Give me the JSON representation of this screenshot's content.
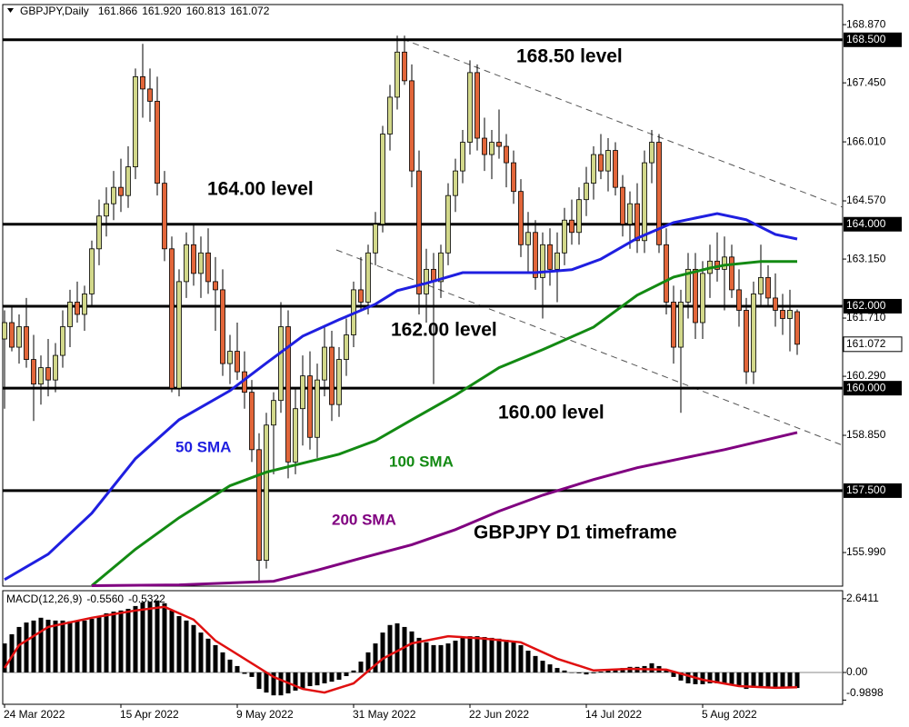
{
  "chart_data": [
    {
      "type": "candlestick",
      "title": "GBPJPY,Daily",
      "header_values": [
        "161.866",
        "161.920",
        "160.813",
        "161.072"
      ],
      "xlim": [
        -0.25,
        115.25
      ],
      "xticks": [
        {
          "value": 0,
          "label": "24 Mar 2022"
        },
        {
          "value": 16,
          "label": "15 Apr 2022"
        },
        {
          "value": 32,
          "label": "9 May 2022"
        },
        {
          "value": 48,
          "label": "31 May 2022"
        },
        {
          "value": 64,
          "label": "22 Jun 2022"
        },
        {
          "value": 80,
          "label": "14 Jul 2022"
        },
        {
          "value": 96,
          "label": "5 Aug 2022"
        }
      ],
      "ylim": [
        155.17,
        169.36
      ],
      "yticks": [
        {
          "value": 168.87,
          "label": "168.870"
        },
        {
          "value": 167.45,
          "label": "167.450"
        },
        {
          "value": 166.01,
          "label": "166.010"
        },
        {
          "value": 164.57,
          "label": "164.570"
        },
        {
          "value": 163.15,
          "label": "163.150"
        },
        {
          "value": 161.71,
          "label": "161.710"
        },
        {
          "value": 160.29,
          "label": "160.290"
        },
        {
          "value": 158.85,
          "label": "158.850"
        },
        {
          "value": 155.99,
          "label": "155.990"
        }
      ],
      "up_color": "#d2d88a",
      "down_color": "#e2663a",
      "ohlc": [
        [
          161.2,
          161.9,
          159.5,
          161.6
        ],
        [
          161.6,
          162.0,
          160.9,
          161.0
        ],
        [
          161.0,
          161.8,
          160.6,
          161.5
        ],
        [
          161.5,
          162.2,
          160.5,
          160.7
        ],
        [
          160.7,
          161.3,
          159.2,
          160.1
        ],
        [
          160.1,
          160.8,
          159.6,
          160.5
        ],
        [
          160.5,
          161.2,
          159.8,
          160.2
        ],
        [
          160.2,
          161.1,
          159.9,
          160.8
        ],
        [
          160.8,
          161.9,
          160.5,
          161.5
        ],
        [
          161.5,
          162.4,
          161.0,
          162.1
        ],
        [
          162.1,
          162.6,
          161.6,
          161.8
        ],
        [
          161.8,
          162.5,
          161.4,
          162.3
        ],
        [
          162.3,
          163.6,
          162.0,
          163.4
        ],
        [
          163.4,
          164.6,
          163.0,
          164.2
        ],
        [
          164.2,
          164.9,
          163.7,
          164.5
        ],
        [
          164.5,
          165.3,
          164.1,
          164.9
        ],
        [
          164.9,
          165.6,
          164.3,
          164.7
        ],
        [
          164.7,
          165.9,
          164.4,
          165.4
        ],
        [
          165.4,
          167.8,
          165.1,
          167.6
        ],
        [
          167.6,
          168.4,
          166.6,
          167.3
        ],
        [
          167.3,
          167.8,
          166.5,
          167.0
        ],
        [
          167.0,
          167.6,
          164.7,
          165.0
        ],
        [
          165.0,
          165.3,
          163.1,
          163.4
        ],
        [
          163.4,
          163.7,
          159.9,
          160.0
        ],
        [
          160.0,
          162.9,
          159.8,
          162.6
        ],
        [
          162.6,
          163.8,
          162.2,
          163.5
        ],
        [
          163.5,
          164.0,
          162.5,
          162.8
        ],
        [
          162.8,
          163.7,
          162.2,
          163.3
        ],
        [
          163.3,
          163.9,
          162.3,
          162.6
        ],
        [
          162.6,
          163.2,
          161.4,
          162.4
        ],
        [
          162.4,
          162.9,
          160.3,
          160.6
        ],
        [
          160.6,
          161.3,
          160.1,
          160.9
        ],
        [
          160.9,
          161.6,
          160.2,
          160.4
        ],
        [
          160.4,
          160.9,
          159.5,
          159.9
        ],
        [
          159.9,
          160.2,
          158.2,
          158.5
        ],
        [
          158.5,
          158.9,
          155.3,
          155.8
        ],
        [
          155.8,
          159.4,
          155.6,
          159.1
        ],
        [
          159.1,
          159.9,
          157.9,
          159.7
        ],
        [
          159.7,
          162.1,
          159.4,
          161.5
        ],
        [
          161.5,
          161.9,
          157.8,
          158.2
        ],
        [
          158.2,
          160.0,
          157.9,
          159.5
        ],
        [
          159.5,
          160.8,
          158.6,
          160.3
        ],
        [
          160.3,
          160.9,
          158.5,
          158.8
        ],
        [
          158.8,
          160.6,
          158.3,
          160.2
        ],
        [
          160.2,
          161.5,
          159.8,
          161.0
        ],
        [
          161.0,
          161.4,
          159.2,
          159.6
        ],
        [
          159.6,
          161.0,
          159.3,
          160.7
        ],
        [
          160.7,
          161.7,
          160.3,
          161.3
        ],
        [
          161.3,
          162.6,
          161.0,
          162.4
        ],
        [
          162.4,
          163.2,
          161.9,
          162.1
        ],
        [
          162.1,
          163.5,
          161.8,
          163.3
        ],
        [
          163.3,
          164.3,
          163.0,
          164.0
        ],
        [
          164.0,
          166.4,
          163.8,
          166.2
        ],
        [
          166.2,
          167.4,
          165.8,
          167.1
        ],
        [
          167.1,
          168.6,
          166.8,
          168.2
        ],
        [
          168.2,
          168.6,
          167.4,
          167.5
        ],
        [
          167.5,
          167.9,
          164.9,
          165.3
        ],
        [
          165.3,
          165.8,
          161.8,
          162.3
        ],
        [
          162.3,
          163.4,
          161.6,
          162.9
        ],
        [
          162.9,
          163.3,
          160.1,
          162.6
        ],
        [
          162.6,
          163.5,
          162.2,
          163.3
        ],
        [
          163.3,
          165.0,
          163.0,
          164.7
        ],
        [
          164.7,
          165.6,
          164.3,
          165.3
        ],
        [
          165.3,
          166.3,
          165.0,
          166.0
        ],
        [
          166.0,
          168.0,
          165.7,
          167.7
        ],
        [
          167.7,
          167.9,
          165.8,
          166.1
        ],
        [
          166.1,
          166.6,
          165.3,
          165.7
        ],
        [
          165.7,
          166.3,
          165.1,
          166.0
        ],
        [
          166.0,
          166.8,
          165.6,
          165.9
        ],
        [
          165.9,
          166.2,
          164.9,
          165.5
        ],
        [
          165.5,
          165.8,
          164.5,
          164.8
        ],
        [
          164.8,
          165.1,
          163.2,
          163.5
        ],
        [
          163.5,
          164.3,
          162.8,
          163.8
        ],
        [
          163.8,
          164.1,
          162.4,
          162.7
        ],
        [
          162.7,
          163.8,
          161.7,
          163.5
        ],
        [
          163.5,
          163.9,
          162.5,
          162.9
        ],
        [
          162.9,
          163.8,
          162.1,
          163.3
        ],
        [
          163.3,
          164.4,
          163.0,
          164.1
        ],
        [
          164.1,
          164.6,
          163.5,
          163.8
        ],
        [
          163.8,
          164.9,
          163.5,
          164.6
        ],
        [
          164.6,
          165.4,
          164.2,
          165.0
        ],
        [
          165.0,
          165.9,
          164.6,
          165.7
        ],
        [
          165.7,
          166.2,
          165.1,
          165.3
        ],
        [
          165.3,
          166.1,
          164.8,
          165.8
        ],
        [
          165.8,
          166.0,
          164.7,
          164.9
        ],
        [
          164.9,
          165.2,
          163.7,
          164.0
        ],
        [
          164.0,
          164.8,
          163.4,
          164.5
        ],
        [
          164.5,
          165.0,
          163.3,
          163.6
        ],
        [
          163.6,
          165.8,
          163.3,
          165.5
        ],
        [
          165.5,
          166.3,
          165.0,
          166.0
        ],
        [
          166.0,
          166.2,
          163.3,
          163.5
        ],
        [
          163.5,
          163.9,
          161.8,
          162.1
        ],
        [
          162.1,
          162.5,
          160.6,
          161.0
        ],
        [
          161.0,
          162.4,
          159.4,
          162.1
        ],
        [
          162.1,
          163.3,
          161.7,
          162.9
        ],
        [
          162.9,
          163.3,
          161.2,
          161.6
        ],
        [
          161.6,
          163.1,
          161.2,
          162.8
        ],
        [
          162.8,
          163.5,
          162.2,
          163.1
        ],
        [
          163.1,
          163.8,
          162.6,
          162.9
        ],
        [
          162.9,
          163.7,
          161.9,
          163.2
        ],
        [
          163.2,
          163.5,
          162.2,
          162.4
        ],
        [
          162.4,
          162.9,
          161.5,
          161.9
        ],
        [
          161.9,
          162.2,
          160.1,
          160.4
        ],
        [
          160.4,
          162.6,
          160.1,
          162.3
        ],
        [
          162.3,
          163.5,
          162.0,
          162.7
        ],
        [
          162.7,
          163.0,
          162.0,
          162.2
        ],
        [
          162.2,
          162.8,
          161.5,
          161.9
        ],
        [
          161.9,
          162.3,
          161.3,
          161.7
        ],
        [
          161.7,
          162.4,
          160.9,
          161.9
        ],
        [
          161.866,
          161.92,
          160.813,
          161.072
        ]
      ],
      "series": [
        {
          "name": "50 SMA",
          "color": "#1f1fe0",
          "x": [
            0,
            6,
            12,
            18,
            24,
            31,
            36,
            41,
            46,
            51,
            54,
            58,
            63,
            68,
            73,
            78,
            82,
            87,
            92,
            98,
            102,
            106,
            109
          ],
          "values": [
            155.33,
            155.95,
            156.95,
            158.28,
            159.23,
            159.94,
            160.61,
            161.27,
            161.67,
            162.05,
            162.38,
            162.56,
            162.82,
            162.82,
            162.82,
            162.89,
            163.15,
            163.66,
            164.04,
            164.26,
            164.11,
            163.75,
            163.64
          ]
        },
        {
          "name": "100 SMA",
          "color": "#138a13",
          "x": [
            12,
            18,
            24,
            31,
            36,
            41,
            46,
            51,
            56,
            62,
            68,
            74,
            81,
            87,
            92,
            97,
            99,
            104,
            109
          ],
          "values": [
            155.18,
            156.07,
            156.84,
            157.62,
            157.95,
            158.17,
            158.39,
            158.72,
            159.23,
            159.83,
            160.5,
            160.94,
            161.49,
            162.27,
            162.71,
            162.93,
            163.0,
            163.09,
            163.09
          ]
        },
        {
          "name": "200 SMA",
          "color": "#800080",
          "x": [
            12,
            24,
            37,
            43,
            49,
            56,
            62,
            68,
            74,
            81,
            87,
            93,
            99,
            109
          ],
          "values": [
            155.18,
            155.2,
            155.29,
            155.56,
            155.85,
            156.18,
            156.55,
            157.0,
            157.39,
            157.77,
            158.06,
            158.28,
            158.5,
            158.92
          ]
        }
      ],
      "levels": [
        {
          "value": 168.5,
          "label": "168.500",
          "text": "168.50 level"
        },
        {
          "value": 164.0,
          "label": "164.000",
          "text": "164.00 level"
        },
        {
          "value": 162.0,
          "label": "162.000",
          "text": "162.00 level"
        },
        {
          "value": 160.0,
          "label": "160.000",
          "text": "160.00 level"
        },
        {
          "value": 157.5,
          "label": "157.500"
        }
      ],
      "last_price": {
        "value": 161.072,
        "label": "161.072"
      },
      "annotation": "GBPJPY D1 timeframe"
    },
    {
      "type": "macd",
      "title": "MACD(12,26,9)",
      "header_values": [
        "-0.5560",
        "-0.5322"
      ],
      "ylim": [
        -1.14,
        2.93
      ],
      "yticks": [
        2.6411,
        {
          "value": 0,
          "label": "0.00"
        },
        -0.9898
      ],
      "color": "#000000",
      "values": [
        1.04,
        1.37,
        1.63,
        1.79,
        1.86,
        1.96,
        1.89,
        1.86,
        1.86,
        1.83,
        1.83,
        1.86,
        1.92,
        2.02,
        2.12,
        2.18,
        2.22,
        2.28,
        2.38,
        2.51,
        2.54,
        2.58,
        2.48,
        2.22,
        2.02,
        1.86,
        1.7,
        1.43,
        1.21,
        0.98,
        0.72,
        0.46,
        0.23,
        -0.05,
        -0.16,
        -0.59,
        -0.72,
        -0.82,
        -0.82,
        -0.75,
        -0.65,
        -0.59,
        -0.49,
        -0.46,
        -0.39,
        -0.33,
        -0.26,
        -0.13,
        0.07,
        0.39,
        0.72,
        1.04,
        1.43,
        1.7,
        1.76,
        1.63,
        1.47,
        1.24,
        1.08,
        0.98,
        0.98,
        1.04,
        1.14,
        1.24,
        1.3,
        1.3,
        1.27,
        1.24,
        1.21,
        1.17,
        1.11,
        0.98,
        0.78,
        0.59,
        0.42,
        0.29,
        0.16,
        0.07,
        0,
        -0.03,
        -0.07,
        -0.03,
        0.03,
        0.1,
        0.13,
        0.16,
        0.2,
        0.2,
        0.23,
        0.33,
        0.23,
        0.07,
        -0.16,
        -0.29,
        -0.39,
        -0.42,
        -0.42,
        -0.39,
        -0.39,
        -0.39,
        -0.42,
        -0.49,
        -0.59,
        -0.55,
        -0.52,
        -0.52,
        -0.55,
        -0.55,
        -0.55,
        -0.556
      ],
      "signal": {
        "color": "#e01010",
        "x": [
          0,
          2,
          6,
          12,
          18,
          22,
          26,
          29,
          33,
          37,
          41,
          44,
          48,
          52,
          56,
          61,
          66,
          71,
          76,
          81,
          86,
          91,
          96,
          101,
          106,
          109
        ],
        "values": [
          0.16,
          0.98,
          1.63,
          1.96,
          2.22,
          2.35,
          1.89,
          1.14,
          0.49,
          -0.16,
          -0.59,
          -0.72,
          -0.39,
          0.49,
          1.04,
          1.3,
          1.21,
          1.08,
          0.49,
          0.07,
          0.13,
          0.1,
          -0.26,
          -0.49,
          -0.55,
          -0.5322
        ]
      }
    }
  ]
}
